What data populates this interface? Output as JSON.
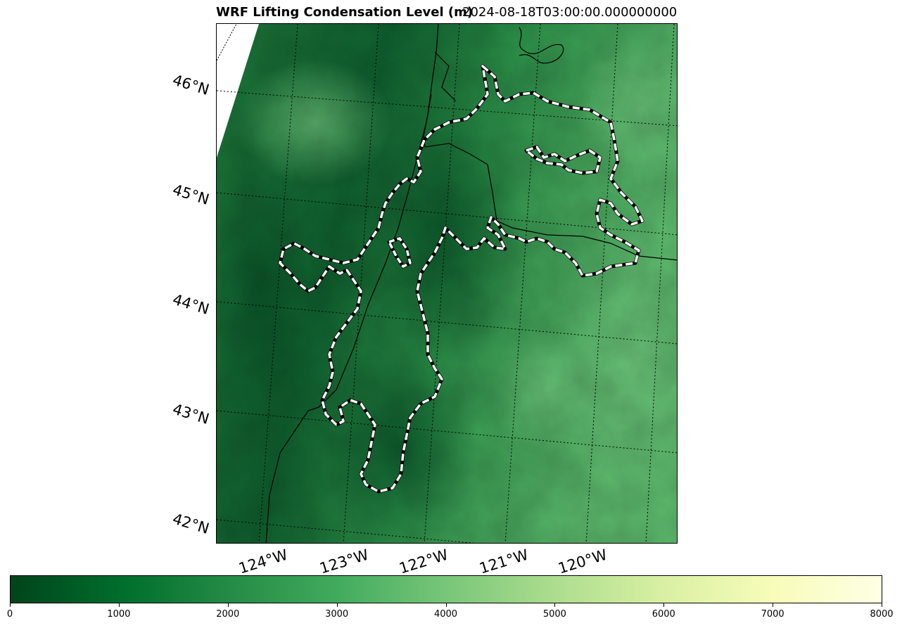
{
  "title": {
    "left": "WRF Lifting Condensation Level (m)",
    "right": "2024-08-18T03:00:00.000000000"
  },
  "map": {
    "lat_labels": [
      "46°N",
      "45°N",
      "44°N",
      "43°N",
      "42°N"
    ],
    "lon_labels": [
      "124°W",
      "123°W",
      "122°W",
      "121°W",
      "120°W"
    ]
  },
  "colorbar": {
    "cmap": "YlGn_r",
    "vmin": 0,
    "vmax": 8000,
    "ticks": [
      "0",
      "1000",
      "2000",
      "3000",
      "4000",
      "5000",
      "6000",
      "7000",
      "8000"
    ],
    "colors": [
      "#00441b",
      "#006d2c",
      "#238b45",
      "#41ab5d",
      "#78c679",
      "#addd8e",
      "#d9f0a3",
      "#f7fcb9",
      "#ffffe5"
    ]
  },
  "colors": {
    "land_dark": "#0b5e2c",
    "land_mid": "#2a8c48",
    "land_light": "#5ab86a",
    "contour_outer": "#000000",
    "contour_inner": "#ffffff"
  }
}
